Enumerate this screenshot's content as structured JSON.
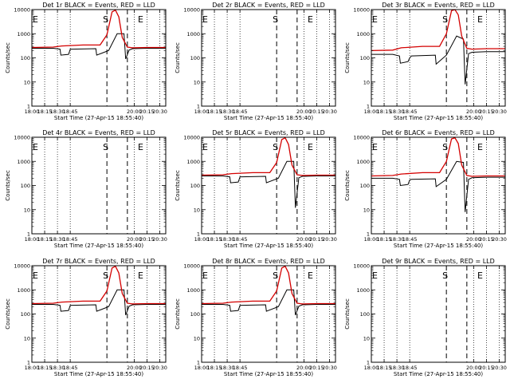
{
  "chart_data": [
    {
      "type": "line",
      "title": "Det 1r BLACK = Events, RED = LLD",
      "xlabel": "Start Time (27-Apr-15 18:55:40)",
      "ylabel": "Counts/sec",
      "yscale": "log",
      "ylim": [
        1,
        10000
      ],
      "xlim": [
        "18:00",
        "20:37"
      ],
      "xticks": [
        "18:00",
        "18:15",
        "18:30",
        "18:45",
        "20:00",
        "20:15",
        "20:30"
      ],
      "yticks": [
        "1",
        "10",
        "100",
        "1000",
        "10000"
      ],
      "markers": [
        {
          "label": "E",
          "x": "18:00"
        },
        {
          "label": "S",
          "x": "19:28"
        },
        {
          "label": "E",
          "x": "20:09"
        }
      ],
      "dashed_lines": [
        "19:28",
        "19:52"
      ],
      "dotted_lines": [
        "18:00",
        "18:15",
        "18:30",
        "18:45",
        "20:00",
        "20:15",
        "20:30"
      ],
      "series": [
        {
          "color": "#000000",
          "x": [
            "18:00",
            "18:25",
            "18:33",
            "18:34",
            "18:43",
            "18:45",
            "18:47",
            "19:15",
            "19:16",
            "19:30",
            "19:40",
            "19:48",
            "19:50",
            "19:54",
            "19:58",
            "20:15",
            "20:37"
          ],
          "values": [
            250,
            250,
            230,
            130,
            140,
            230,
            230,
            240,
            130,
            200,
            1000,
            1000,
            90,
            210,
            240,
            250,
            250
          ]
        },
        {
          "color": "#d40000",
          "x": [
            "18:00",
            "18:25",
            "18:35",
            "19:00",
            "19:20",
            "19:28",
            "19:34",
            "19:38",
            "19:42",
            "19:46",
            "19:52",
            "19:58",
            "20:15",
            "20:37"
          ],
          "values": [
            270,
            280,
            310,
            340,
            340,
            900,
            8000,
            9500,
            5000,
            700,
            280,
            260,
            270,
            270
          ]
        }
      ]
    },
    {
      "type": "line",
      "title": "Det 2r BLACK = Events, RED = LLD",
      "xlabel": "Start Time (27-Apr-15 18:55:40)",
      "ylabel": "Counts/sec",
      "yscale": "log",
      "ylim": [
        1,
        10000
      ],
      "xlim": [
        "18:00",
        "20:37"
      ],
      "xticks": [
        "18:00",
        "18:15",
        "18:30",
        "18:45",
        "20:00",
        "20:15",
        "20:30"
      ],
      "yticks": [
        "1",
        "10",
        "100",
        "1000",
        "10000"
      ],
      "markers": [
        {
          "label": "E",
          "x": "18:00"
        },
        {
          "label": "S",
          "x": "19:28"
        },
        {
          "label": "E",
          "x": "20:09"
        }
      ],
      "dashed_lines": [
        "19:28",
        "19:52"
      ],
      "dotted_lines": [
        "18:00",
        "18:15",
        "18:30",
        "18:45",
        "20:00",
        "20:15",
        "20:30"
      ],
      "series": []
    },
    {
      "type": "line",
      "title": "Det 3r BLACK = Events, RED = LLD",
      "xlabel": "Start Time (27-Apr-15 18:55:40)",
      "ylabel": "Counts/sec",
      "yscale": "log",
      "ylim": [
        1,
        10000
      ],
      "xlim": [
        "18:00",
        "20:37"
      ],
      "xticks": [
        "18:00",
        "18:15",
        "18:30",
        "18:45",
        "20:00",
        "20:15",
        "20:30"
      ],
      "yticks": [
        "1",
        "10",
        "100",
        "1000",
        "10000"
      ],
      "markers": [
        {
          "label": "E",
          "x": "18:00"
        },
        {
          "label": "S",
          "x": "19:28"
        },
        {
          "label": "E",
          "x": "20:09"
        }
      ],
      "dashed_lines": [
        "19:28",
        "19:52"
      ],
      "dotted_lines": [
        "18:00",
        "18:15",
        "18:30",
        "18:45",
        "20:00",
        "20:15",
        "20:30"
      ],
      "series": [
        {
          "color": "#000000",
          "x": [
            "18:00",
            "18:25",
            "18:33",
            "18:34",
            "18:43",
            "18:45",
            "18:47",
            "19:15",
            "19:16",
            "19:28",
            "19:40",
            "19:48",
            "19:50",
            "19:54",
            "19:58",
            "20:15",
            "20:37"
          ],
          "values": [
            140,
            140,
            120,
            60,
            70,
            100,
            120,
            130,
            55,
            130,
            800,
            600,
            8,
            150,
            170,
            180,
            180
          ]
        },
        {
          "color": "#d40000",
          "x": [
            "18:00",
            "18:25",
            "18:35",
            "19:00",
            "19:20",
            "19:28",
            "19:34",
            "19:38",
            "19:42",
            "19:46",
            "19:52",
            "19:58",
            "20:15",
            "20:37"
          ],
          "values": [
            200,
            210,
            260,
            300,
            300,
            1000,
            9000,
            10000,
            6000,
            800,
            250,
            230,
            240,
            240
          ]
        }
      ]
    },
    {
      "type": "line",
      "title": "Det 4r BLACK = Events, RED = LLD",
      "xlabel": "Start Time (27-Apr-15 18:55:40)",
      "ylabel": "Counts/sec",
      "yscale": "log",
      "ylim": [
        1,
        10000
      ],
      "xlim": [
        "18:00",
        "20:37"
      ],
      "xticks": [
        "18:00",
        "18:15",
        "18:30",
        "18:45",
        "20:00",
        "20:15",
        "20:30"
      ],
      "yticks": [
        "1",
        "10",
        "100",
        "1000",
        "10000"
      ],
      "markers": [
        {
          "label": "E",
          "x": "18:00"
        },
        {
          "label": "S",
          "x": "19:28"
        },
        {
          "label": "E",
          "x": "20:09"
        }
      ],
      "dashed_lines": [
        "19:28",
        "19:52"
      ],
      "dotted_lines": [
        "18:00",
        "18:15",
        "18:30",
        "18:45",
        "20:00",
        "20:15",
        "20:30"
      ],
      "series": []
    },
    {
      "type": "line",
      "title": "Det 5r BLACK = Events, RED = LLD",
      "xlabel": "Start Time (27-Apr-15 18:55:40)",
      "ylabel": "Counts/sec",
      "yscale": "log",
      "ylim": [
        1,
        10000
      ],
      "xlim": [
        "18:00",
        "20:37"
      ],
      "xticks": [
        "18:00",
        "18:15",
        "18:30",
        "18:45",
        "20:00",
        "20:15",
        "20:30"
      ],
      "yticks": [
        "1",
        "10",
        "100",
        "1000",
        "10000"
      ],
      "markers": [
        {
          "label": "E",
          "x": "18:00"
        },
        {
          "label": "S",
          "x": "19:28"
        },
        {
          "label": "E",
          "x": "20:09"
        }
      ],
      "dashed_lines": [
        "19:28",
        "19:52"
      ],
      "dotted_lines": [
        "18:00",
        "18:15",
        "18:30",
        "18:45",
        "20:00",
        "20:15",
        "20:30"
      ],
      "series": [
        {
          "color": "#000000",
          "x": [
            "18:00",
            "18:25",
            "18:33",
            "18:34",
            "18:43",
            "18:45",
            "18:47",
            "19:15",
            "19:16",
            "19:30",
            "19:40",
            "19:48",
            "19:50",
            "19:54",
            "19:58",
            "20:15",
            "20:37"
          ],
          "values": [
            250,
            250,
            230,
            130,
            140,
            230,
            230,
            240,
            130,
            200,
            1000,
            1000,
            12,
            210,
            240,
            250,
            250
          ]
        },
        {
          "color": "#d40000",
          "x": [
            "18:00",
            "18:25",
            "18:35",
            "19:00",
            "19:20",
            "19:28",
            "19:34",
            "19:38",
            "19:42",
            "19:46",
            "19:52",
            "19:58",
            "20:15",
            "20:37"
          ],
          "values": [
            270,
            280,
            310,
            340,
            340,
            900,
            8000,
            9500,
            5000,
            700,
            280,
            260,
            270,
            270
          ]
        }
      ]
    },
    {
      "type": "line",
      "title": "Det 6r BLACK = Events, RED = LLD",
      "xlabel": "Start Time (27-Apr-15 18:55:40)",
      "ylabel": "Counts/sec",
      "yscale": "log",
      "ylim": [
        1,
        10000
      ],
      "xlim": [
        "18:00",
        "20:37"
      ],
      "xticks": [
        "18:00",
        "18:15",
        "18:30",
        "18:45",
        "20:00",
        "20:15",
        "20:30"
      ],
      "yticks": [
        "1",
        "10",
        "100",
        "1000",
        "10000"
      ],
      "markers": [
        {
          "label": "E",
          "x": "18:00"
        },
        {
          "label": "S",
          "x": "19:28"
        },
        {
          "label": "E",
          "x": "20:09"
        }
      ],
      "dashed_lines": [
        "19:28",
        "19:52"
      ],
      "dotted_lines": [
        "18:00",
        "18:15",
        "18:30",
        "18:45",
        "20:00",
        "20:15",
        "20:30"
      ],
      "series": [
        {
          "color": "#000000",
          "x": [
            "18:00",
            "18:25",
            "18:33",
            "18:34",
            "18:43",
            "18:45",
            "18:47",
            "19:15",
            "19:16",
            "19:28",
            "19:40",
            "19:48",
            "19:50",
            "19:54",
            "19:58",
            "20:15",
            "20:37"
          ],
          "values": [
            200,
            200,
            180,
            100,
            110,
            170,
            180,
            190,
            90,
            180,
            1000,
            900,
            8,
            180,
            210,
            220,
            220
          ]
        },
        {
          "color": "#d40000",
          "x": [
            "18:00",
            "18:25",
            "18:35",
            "19:00",
            "19:20",
            "19:28",
            "19:34",
            "19:38",
            "19:42",
            "19:46",
            "19:52",
            "19:58",
            "20:15",
            "20:37"
          ],
          "values": [
            250,
            260,
            300,
            340,
            340,
            1000,
            8500,
            9500,
            5500,
            700,
            260,
            240,
            250,
            250
          ]
        }
      ]
    },
    {
      "type": "line",
      "title": "Det 7r BLACK = Events, RED = LLD",
      "xlabel": "Start Time (27-Apr-15 18:55:40)",
      "ylabel": "Counts/sec",
      "yscale": "log",
      "ylim": [
        1,
        10000
      ],
      "xlim": [
        "18:00",
        "20:37"
      ],
      "xticks": [
        "18:00",
        "18:15",
        "18:30",
        "18:45",
        "20:00",
        "20:15",
        "20:30"
      ],
      "yticks": [
        "1",
        "10",
        "100",
        "1000",
        "10000"
      ],
      "markers": [
        {
          "label": "E",
          "x": "18:00"
        },
        {
          "label": "S",
          "x": "19:28"
        },
        {
          "label": "E",
          "x": "20:09"
        }
      ],
      "dashed_lines": [
        "19:28",
        "19:52"
      ],
      "dotted_lines": [
        "18:00",
        "18:15",
        "18:30",
        "18:45",
        "20:00",
        "20:15",
        "20:30"
      ],
      "series": [
        {
          "color": "#000000",
          "x": [
            "18:00",
            "18:25",
            "18:33",
            "18:34",
            "18:43",
            "18:45",
            "18:47",
            "19:15",
            "19:16",
            "19:30",
            "19:40",
            "19:48",
            "19:50",
            "19:54",
            "19:58",
            "20:15",
            "20:37"
          ],
          "values": [
            250,
            250,
            230,
            130,
            140,
            230,
            230,
            240,
            130,
            200,
            1000,
            1000,
            90,
            210,
            240,
            250,
            250
          ]
        },
        {
          "color": "#d40000",
          "x": [
            "18:00",
            "18:25",
            "18:35",
            "19:00",
            "19:20",
            "19:28",
            "19:34",
            "19:38",
            "19:42",
            "19:46",
            "19:52",
            "19:58",
            "20:15",
            "20:37"
          ],
          "values": [
            270,
            280,
            310,
            340,
            340,
            900,
            8000,
            9500,
            5000,
            700,
            280,
            260,
            270,
            270
          ]
        }
      ]
    },
    {
      "type": "line",
      "title": "Det 8r BLACK = Events, RED = LLD",
      "xlabel": "Start Time (27-Apr-15 18:55:40)",
      "ylabel": "Counts/sec",
      "yscale": "log",
      "ylim": [
        1,
        10000
      ],
      "xlim": [
        "18:00",
        "20:37"
      ],
      "xticks": [
        "18:00",
        "18:15",
        "18:30",
        "18:45",
        "20:00",
        "20:15",
        "20:30"
      ],
      "yticks": [
        "1",
        "10",
        "100",
        "1000",
        "10000"
      ],
      "markers": [
        {
          "label": "E",
          "x": "18:00"
        },
        {
          "label": "S",
          "x": "19:28"
        },
        {
          "label": "E",
          "x": "20:09"
        }
      ],
      "dashed_lines": [
        "19:28",
        "19:52"
      ],
      "dotted_lines": [
        "18:00",
        "18:15",
        "18:30",
        "18:45",
        "20:00",
        "20:15",
        "20:30"
      ],
      "series": [
        {
          "color": "#000000",
          "x": [
            "18:00",
            "18:25",
            "18:33",
            "18:34",
            "18:43",
            "18:45",
            "18:47",
            "19:15",
            "19:16",
            "19:30",
            "19:40",
            "19:48",
            "19:50",
            "19:54",
            "19:58",
            "20:15",
            "20:37"
          ],
          "values": [
            250,
            250,
            230,
            130,
            140,
            230,
            230,
            240,
            130,
            200,
            1000,
            1000,
            90,
            210,
            240,
            250,
            250
          ]
        },
        {
          "color": "#d40000",
          "x": [
            "18:00",
            "18:25",
            "18:35",
            "19:00",
            "19:20",
            "19:28",
            "19:34",
            "19:38",
            "19:42",
            "19:46",
            "19:52",
            "19:58",
            "20:15",
            "20:37"
          ],
          "values": [
            270,
            280,
            310,
            340,
            340,
            900,
            8000,
            9500,
            5000,
            700,
            280,
            260,
            270,
            270
          ]
        }
      ]
    },
    {
      "type": "line",
      "title": "Det 9r BLACK = Events, RED = LLD",
      "xlabel": "Start Time (27-Apr-15 18:55:40)",
      "ylabel": "Counts/sec",
      "yscale": "log",
      "ylim": [
        1,
        10000
      ],
      "xlim": [
        "18:00",
        "20:37"
      ],
      "xticks": [
        "18:00",
        "18:15",
        "18:30",
        "18:45",
        "20:00",
        "20:15",
        "20:30"
      ],
      "yticks": [
        "1",
        "10",
        "100",
        "1000",
        "10000"
      ],
      "markers": [
        {
          "label": "E",
          "x": "18:00"
        },
        {
          "label": "S",
          "x": "19:28"
        },
        {
          "label": "E",
          "x": "20:09"
        }
      ],
      "dashed_lines": [
        "19:28",
        "19:52"
      ],
      "dotted_lines": [
        "18:00",
        "18:15",
        "18:30",
        "18:45",
        "20:00",
        "20:15",
        "20:30"
      ],
      "series": []
    }
  ]
}
